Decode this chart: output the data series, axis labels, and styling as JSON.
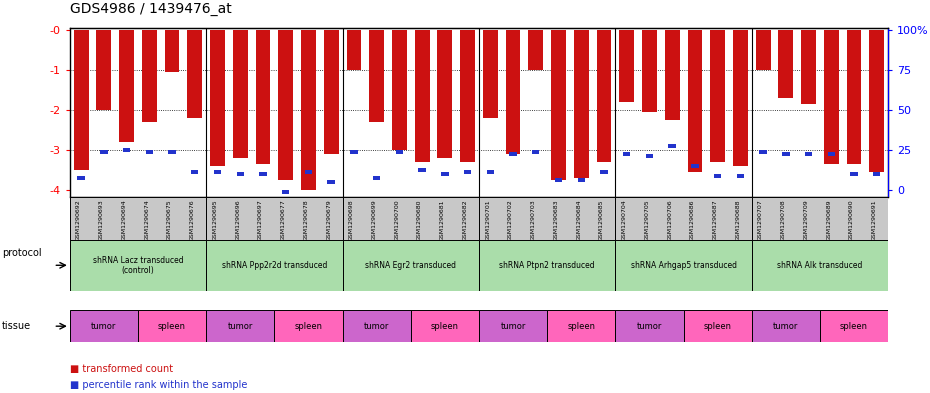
{
  "title": "GDS4986 / 1439476_at",
  "samples": [
    "GSM1290692",
    "GSM1290693",
    "GSM1290694",
    "GSM1290674",
    "GSM1290675",
    "GSM1290676",
    "GSM1290695",
    "GSM1290696",
    "GSM1290697",
    "GSM1290677",
    "GSM1290678",
    "GSM1290679",
    "GSM1290698",
    "GSM1290699",
    "GSM1290700",
    "GSM1290680",
    "GSM1290681",
    "GSM1290682",
    "GSM1290701",
    "GSM1290702",
    "GSM1290703",
    "GSM1290683",
    "GSM1290684",
    "GSM1290685",
    "GSM1290704",
    "GSM1290705",
    "GSM1290706",
    "GSM1290686",
    "GSM1290687",
    "GSM1290688",
    "GSM1290707",
    "GSM1290708",
    "GSM1290709",
    "GSM1290689",
    "GSM1290690",
    "GSM1290691"
  ],
  "red_values": [
    -3.5,
    -2.0,
    -2.8,
    -2.3,
    -1.05,
    -2.2,
    -3.4,
    -3.2,
    -3.35,
    -3.75,
    -4.0,
    -3.1,
    -1.0,
    -2.3,
    -3.0,
    -3.3,
    -3.2,
    -3.3,
    -2.2,
    -3.1,
    -1.0,
    -3.75,
    -3.7,
    -3.3,
    -1.8,
    -2.05,
    -2.25,
    -3.55,
    -3.3,
    -3.4,
    -1.0,
    -1.7,
    -1.85,
    -3.35,
    -3.35,
    -3.55
  ],
  "blue_values": [
    -3.7,
    -3.05,
    -3.0,
    -3.05,
    -3.05,
    -3.55,
    -3.55,
    -3.6,
    -3.6,
    -4.05,
    -3.55,
    -3.8,
    -3.05,
    -3.7,
    -3.05,
    -3.5,
    -3.6,
    -3.55,
    -3.55,
    -3.1,
    -3.05,
    -3.75,
    -3.75,
    -3.55,
    -3.1,
    -3.15,
    -2.9,
    -3.4,
    -3.65,
    -3.65,
    -3.05,
    -3.1,
    -3.1,
    -3.1,
    -3.6,
    -3.6
  ],
  "protocols": [
    {
      "label": "shRNA Lacz transduced\n(control)",
      "start": 0,
      "end": 6
    },
    {
      "label": "shRNA Ppp2r2d transduced",
      "start": 6,
      "end": 12
    },
    {
      "label": "shRNA Egr2 transduced",
      "start": 12,
      "end": 18
    },
    {
      "label": "shRNA Ptpn2 transduced",
      "start": 18,
      "end": 24
    },
    {
      "label": "shRNA Arhgap5 transduced",
      "start": 24,
      "end": 30
    },
    {
      "label": "shRNA Alk transduced",
      "start": 30,
      "end": 36
    }
  ],
  "tissues": [
    {
      "label": "tumor",
      "start": 0,
      "end": 3
    },
    {
      "label": "spleen",
      "start": 3,
      "end": 6
    },
    {
      "label": "tumor",
      "start": 6,
      "end": 9
    },
    {
      "label": "spleen",
      "start": 9,
      "end": 12
    },
    {
      "label": "tumor",
      "start": 12,
      "end": 15
    },
    {
      "label": "spleen",
      "start": 15,
      "end": 18
    },
    {
      "label": "tumor",
      "start": 18,
      "end": 21
    },
    {
      "label": "spleen",
      "start": 21,
      "end": 24
    },
    {
      "label": "tumor",
      "start": 24,
      "end": 27
    },
    {
      "label": "spleen",
      "start": 27,
      "end": 30
    },
    {
      "label": "tumor",
      "start": 30,
      "end": 33
    },
    {
      "label": "spleen",
      "start": 33,
      "end": 36
    }
  ],
  "tumor_color": "#cc66cc",
  "spleen_color": "#ff66bb",
  "protocol_color": "#aaddaa",
  "ylim_min": -4.15,
  "ylim_max": 0.05,
  "yticks_left": [
    0,
    -1,
    -2,
    -3,
    -4
  ],
  "ytick_left_labels": [
    "-0",
    "-1",
    "-2",
    "-3",
    "-4"
  ],
  "yticks_right": [
    0,
    -1,
    -2,
    -3,
    -4
  ],
  "ytick_right_labels": [
    "100%",
    "75",
    "50",
    "25",
    "0"
  ],
  "bar_color": "#cc1111",
  "blue_color": "#2233cc",
  "xlabel_bg": "#c8c8c8"
}
